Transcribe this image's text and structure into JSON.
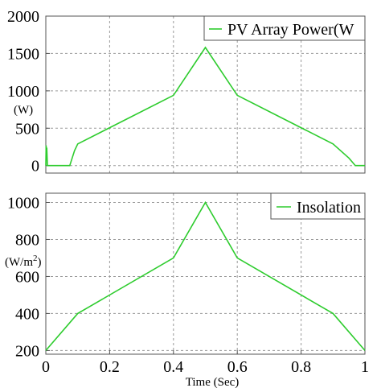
{
  "chart_data": [
    {
      "type": "line",
      "ylabel": "(W)",
      "xlim": [
        0,
        1
      ],
      "ylim": [
        -100,
        2000
      ],
      "yticks": [
        0,
        500,
        1000,
        1500,
        2000
      ],
      "xticks": [
        0,
        0.2,
        0.4,
        0.6,
        0.8,
        1
      ],
      "grid": true,
      "legend_position": "top-right",
      "color": "#2ecc2e",
      "series": [
        {
          "name": "PV Array Power(W",
          "x": [
            0,
            0.001,
            0.002,
            0.003,
            0.005,
            0.07,
            0.075,
            0.09,
            0.1,
            0.4,
            0.5,
            0.6,
            0.9,
            0.95,
            0.97,
            1.0
          ],
          "y": [
            0,
            270,
            80,
            240,
            0,
            0,
            0,
            200,
            290,
            940,
            1580,
            940,
            290,
            100,
            0,
            0
          ]
        }
      ]
    },
    {
      "type": "line",
      "ylabel": "(W/m",
      "ylabel_sup": "2",
      "ylabel_close": ")",
      "xlabel": "Time (Sec)",
      "xlim": [
        0,
        1
      ],
      "ylim": [
        180,
        1050
      ],
      "yticks": [
        200,
        400,
        600,
        800,
        1000
      ],
      "xticks": [
        0,
        0.2,
        0.4,
        0.6,
        0.8,
        1
      ],
      "grid": true,
      "legend_position": "top-right",
      "color": "#2ecc2e",
      "series": [
        {
          "name": "Insolation",
          "x": [
            0,
            0.1,
            0.4,
            0.5,
            0.6,
            0.9,
            1.0
          ],
          "y": [
            200,
            400,
            700,
            1000,
            700,
            400,
            200
          ]
        }
      ]
    }
  ],
  "labels": {
    "ytick_top": [
      "0",
      "500",
      "1000",
      "1500",
      "2000"
    ],
    "ytick_bottom": [
      "200",
      "400",
      "600",
      "800",
      "1000"
    ],
    "xtick": [
      "0",
      "0.2",
      "0.4",
      "0.6",
      "0.8",
      "1"
    ]
  }
}
